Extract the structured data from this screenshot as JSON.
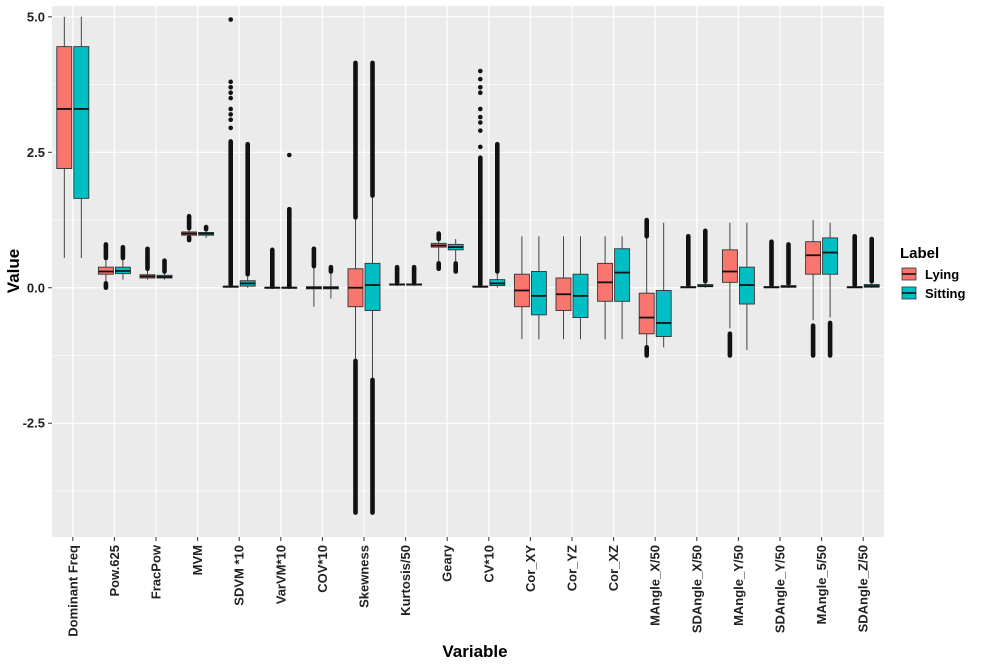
{
  "chart_data": {
    "type": "boxplot",
    "xlabel": "Variable",
    "ylabel": "Value",
    "ylim": [
      -4.6,
      5.2
    ],
    "yticks": [
      -2.5,
      0.0,
      2.5,
      5.0
    ],
    "ytick_labels": [
      "-2.5",
      "0.0",
      "2.5",
      "5.0"
    ],
    "legend": {
      "title": "Label",
      "position": "right",
      "entries": [
        {
          "name": "Lying",
          "color": "#f8766d"
        },
        {
          "name": "Sitting",
          "color": "#00bfc4"
        }
      ]
    },
    "colors": {
      "panel": "#ebebeb",
      "grid": "#ffffff",
      "box_outline": "#333333",
      "outlier": "#111111"
    },
    "categories": [
      "Dominant Freq",
      "Pow.625",
      "FracPow",
      "MVM",
      "SDVM *10",
      "VarVM*10",
      "COV*10",
      "Skewness",
      "Kurtosis/50",
      "Geary",
      "CV*10",
      "Cor_XY",
      "Cor_YZ",
      "Cor_XZ",
      "MAngle_X/50",
      "SDAngle_X/50",
      "MAngle_Y/50",
      "SDAngle_Y/50",
      "MAngle_5/50",
      "SDAngle_Z/50"
    ],
    "series": [
      {
        "name": "Lying",
        "boxes": [
          {
            "whisker_low": 0.55,
            "q1": 2.2,
            "median": 3.3,
            "q3": 4.45,
            "whisker_high": 5.0,
            "outliers": []
          },
          {
            "whisker_low": 0.1,
            "q1": 0.25,
            "median": 0.3,
            "q3": 0.38,
            "whisker_high": 0.55,
            "outliers": [
              {
                "range": [
                  0.55,
                  0.8
                ]
              },
              {
                "range": [
                  0.0,
                  0.08
                ]
              }
            ]
          },
          {
            "whisker_low": 0.15,
            "q1": 0.18,
            "median": 0.21,
            "q3": 0.24,
            "whisker_high": 0.35,
            "outliers": [
              {
                "range": [
                  0.35,
                  0.72
                ]
              }
            ]
          },
          {
            "whisker_low": 0.9,
            "q1": 0.97,
            "median": 1.0,
            "q3": 1.03,
            "whisker_high": 1.1,
            "outliers": [
              {
                "range": [
                  1.1,
                  1.32
                ]
              },
              {
                "range": [
                  0.88,
                  0.93
                ]
              }
            ]
          },
          {
            "whisker_low": 0.0,
            "q1": 0.01,
            "median": 0.02,
            "q3": 0.03,
            "whisker_high": 0.06,
            "outliers": [
              {
                "range": [
                  0.06,
                  2.7
                ]
              },
              {
                "values": [
                  2.95,
                  3.1,
                  3.2,
                  3.3,
                  3.5,
                  3.6,
                  3.7,
                  3.8,
                  4.95
                ]
              }
            ]
          },
          {
            "whisker_low": 0.0,
            "q1": 0.0,
            "median": 0.0,
            "q3": 0.01,
            "whisker_high": 0.02,
            "outliers": [
              {
                "range": [
                  0.02,
                  0.7
                ]
              }
            ]
          },
          {
            "whisker_low": -0.35,
            "q1": -0.02,
            "median": 0.0,
            "q3": 0.02,
            "whisker_high": 0.4,
            "outliers": [
              {
                "range": [
                  0.4,
                  0.72
                ]
              }
            ]
          },
          {
            "whisker_low": -1.35,
            "q1": -0.35,
            "median": 0.0,
            "q3": 0.35,
            "whisker_high": 1.3,
            "outliers": [
              {
                "range": [
                  1.3,
                  4.15
                ]
              },
              {
                "range": [
                  -4.15,
                  -1.35
                ]
              }
            ]
          },
          {
            "whisker_low": 0.03,
            "q1": 0.05,
            "median": 0.06,
            "q3": 0.07,
            "whisker_high": 0.1,
            "outliers": [
              {
                "range": [
                  0.1,
                  0.38
                ]
              }
            ]
          },
          {
            "whisker_low": 0.45,
            "q1": 0.75,
            "median": 0.78,
            "q3": 0.82,
            "whisker_high": 0.9,
            "outliers": [
              {
                "range": [
                  0.9,
                  1.0
                ]
              },
              {
                "range": [
                  0.35,
                  0.45
                ]
              }
            ]
          },
          {
            "whisker_low": 0.0,
            "q1": 0.01,
            "median": 0.02,
            "q3": 0.03,
            "whisker_high": 0.06,
            "outliers": [
              {
                "range": [
                  0.06,
                  2.4
                ]
              },
              {
                "values": [
                  2.6,
                  2.9,
                  3.05,
                  3.15,
                  3.3,
                  3.6,
                  3.7,
                  3.85,
                  4.0
                ]
              }
            ]
          },
          {
            "whisker_low": -0.95,
            "q1": -0.35,
            "median": -0.05,
            "q3": 0.25,
            "whisker_high": 0.95,
            "outliers": []
          },
          {
            "whisker_low": -0.95,
            "q1": -0.42,
            "median": -0.12,
            "q3": 0.18,
            "whisker_high": 0.95,
            "outliers": []
          },
          {
            "whisker_low": -0.95,
            "q1": -0.25,
            "median": 0.1,
            "q3": 0.45,
            "whisker_high": 0.95,
            "outliers": []
          },
          {
            "whisker_low": -1.1,
            "q1": -0.85,
            "median": -0.55,
            "q3": -0.1,
            "whisker_high": 0.95,
            "outliers": [
              {
                "range": [
                  0.95,
                  1.25
                ]
              },
              {
                "range": [
                  -1.25,
                  -1.1
                ]
              }
            ]
          },
          {
            "whisker_low": 0.0,
            "q1": 0.0,
            "median": 0.01,
            "q3": 0.02,
            "whisker_high": 0.05,
            "outliers": [
              {
                "range": [
                  0.05,
                  0.95
                ]
              }
            ]
          },
          {
            "whisker_low": -0.75,
            "q1": 0.1,
            "median": 0.3,
            "q3": 0.7,
            "whisker_high": 1.2,
            "outliers": [
              {
                "range": [
                  -1.25,
                  -0.85
                ]
              }
            ]
          },
          {
            "whisker_low": 0.0,
            "q1": 0.0,
            "median": 0.01,
            "q3": 0.02,
            "whisker_high": 0.05,
            "outliers": [
              {
                "range": [
                  0.05,
                  0.85
                ]
              }
            ]
          },
          {
            "whisker_low": -0.6,
            "q1": 0.25,
            "median": 0.6,
            "q3": 0.85,
            "whisker_high": 1.25,
            "outliers": [
              {
                "range": [
                  -1.25,
                  -0.7
                ]
              }
            ]
          },
          {
            "whisker_low": 0.0,
            "q1": 0.0,
            "median": 0.01,
            "q3": 0.02,
            "whisker_high": 0.05,
            "outliers": [
              {
                "range": [
                  0.05,
                  0.95
                ]
              }
            ]
          }
        ]
      },
      {
        "name": "Sitting",
        "boxes": [
          {
            "whisker_low": 0.55,
            "q1": 1.65,
            "median": 3.3,
            "q3": 4.45,
            "whisker_high": 5.0,
            "outliers": []
          },
          {
            "whisker_low": 0.15,
            "q1": 0.26,
            "median": 0.31,
            "q3": 0.38,
            "whisker_high": 0.55,
            "outliers": [
              {
                "range": [
                  0.55,
                  0.75
                ]
              }
            ]
          },
          {
            "whisker_low": 0.15,
            "q1": 0.18,
            "median": 0.2,
            "q3": 0.23,
            "whisker_high": 0.3,
            "outliers": [
              {
                "range": [
                  0.3,
                  0.5
                ]
              }
            ]
          },
          {
            "whisker_low": 0.92,
            "q1": 0.97,
            "median": 1.0,
            "q3": 1.02,
            "whisker_high": 1.08,
            "outliers": [
              {
                "range": [
                  1.08,
                  1.12
                ]
              }
            ]
          },
          {
            "whisker_low": 0.0,
            "q1": 0.03,
            "median": 0.08,
            "q3": 0.13,
            "whisker_high": 0.25,
            "outliers": [
              {
                "range": [
                  0.25,
                  2.65
                ]
              }
            ]
          },
          {
            "whisker_low": 0.0,
            "q1": 0.0,
            "median": 0.0,
            "q3": 0.01,
            "whisker_high": 0.02,
            "outliers": [
              {
                "range": [
                  0.02,
                  1.45
                ]
              },
              {
                "values": [
                  2.45
                ]
              }
            ]
          },
          {
            "whisker_low": -0.2,
            "q1": -0.02,
            "median": 0.0,
            "q3": 0.02,
            "whisker_high": 0.3,
            "outliers": [
              {
                "range": [
                  0.3,
                  0.38
                ]
              }
            ]
          },
          {
            "whisker_low": -1.7,
            "q1": -0.42,
            "median": 0.05,
            "q3": 0.45,
            "whisker_high": 1.7,
            "outliers": [
              {
                "range": [
                  1.7,
                  4.15
                ]
              },
              {
                "range": [
                  -4.15,
                  -1.7
                ]
              }
            ]
          },
          {
            "whisker_low": 0.03,
            "q1": 0.05,
            "median": 0.06,
            "q3": 0.07,
            "whisker_high": 0.1,
            "outliers": [
              {
                "range": [
                  0.1,
                  0.38
                ]
              }
            ]
          },
          {
            "whisker_low": 0.45,
            "q1": 0.7,
            "median": 0.75,
            "q3": 0.8,
            "whisker_high": 0.9,
            "outliers": [
              {
                "range": [
                  0.3,
                  0.45
                ]
              }
            ]
          },
          {
            "whisker_low": 0.0,
            "q1": 0.04,
            "median": 0.08,
            "q3": 0.15,
            "whisker_high": 0.3,
            "outliers": [
              {
                "range": [
                  0.3,
                  2.65
                ]
              }
            ]
          },
          {
            "whisker_low": -0.95,
            "q1": -0.5,
            "median": -0.15,
            "q3": 0.3,
            "whisker_high": 0.95,
            "outliers": []
          },
          {
            "whisker_low": -0.95,
            "q1": -0.55,
            "median": -0.15,
            "q3": 0.25,
            "whisker_high": 0.95,
            "outliers": []
          },
          {
            "whisker_low": -0.95,
            "q1": -0.25,
            "median": 0.28,
            "q3": 0.72,
            "whisker_high": 0.95,
            "outliers": []
          },
          {
            "whisker_low": -1.1,
            "q1": -0.9,
            "median": -0.65,
            "q3": -0.05,
            "whisker_high": 1.2,
            "outliers": []
          },
          {
            "whisker_low": 0.0,
            "q1": 0.02,
            "median": 0.03,
            "q3": 0.06,
            "whisker_high": 0.12,
            "outliers": [
              {
                "range": [
                  0.12,
                  1.05
                ]
              }
            ]
          },
          {
            "whisker_low": -1.15,
            "q1": -0.3,
            "median": 0.05,
            "q3": 0.38,
            "whisker_high": 1.2,
            "outliers": []
          },
          {
            "whisker_low": 0.0,
            "q1": 0.01,
            "median": 0.02,
            "q3": 0.04,
            "whisker_high": 0.08,
            "outliers": [
              {
                "range": [
                  0.08,
                  0.8
                ]
              }
            ]
          },
          {
            "whisker_low": -0.55,
            "q1": 0.25,
            "median": 0.65,
            "q3": 0.92,
            "whisker_high": 1.2,
            "outliers": [
              {
                "range": [
                  -1.25,
                  -0.65
                ]
              }
            ]
          },
          {
            "whisker_low": 0.0,
            "q1": 0.01,
            "median": 0.03,
            "q3": 0.06,
            "whisker_high": 0.12,
            "outliers": [
              {
                "range": [
                  0.12,
                  0.9
                ]
              }
            ]
          }
        ]
      }
    ]
  }
}
